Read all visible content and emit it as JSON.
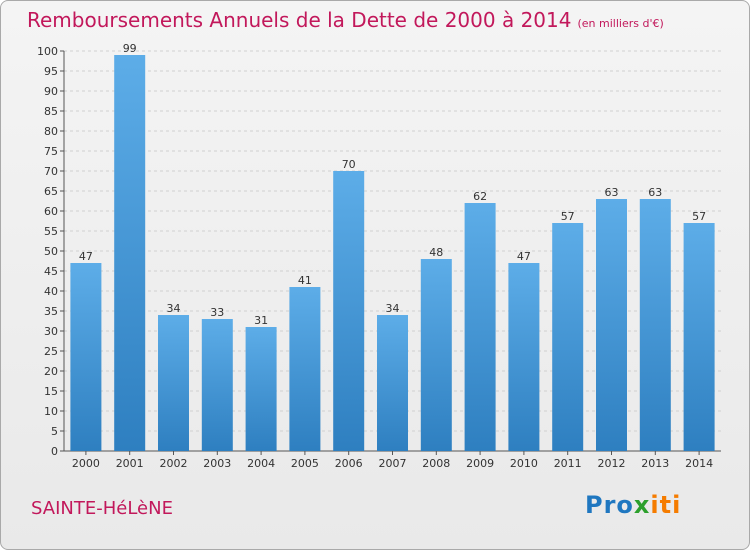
{
  "title": "Remboursements Annuels de la Dette de 2000 à 2014",
  "unit_note": "(en milliers d'€)",
  "commune": "SAINTE-HéLèNE",
  "logo": {
    "part1": "Pro",
    "part2": "x",
    "part3": "iti"
  },
  "colors": {
    "title": "#c2185b",
    "bar_light": "#5dade8",
    "bar_dark": "#2e7fc0",
    "grid": "#d0d0d0"
  },
  "chart_data": {
    "type": "bar",
    "categories": [
      "2000",
      "2001",
      "2002",
      "2003",
      "2004",
      "2005",
      "2006",
      "2007",
      "2008",
      "2009",
      "2010",
      "2011",
      "2012",
      "2013",
      "2014"
    ],
    "values": [
      47,
      99,
      34,
      33,
      31,
      41,
      70,
      34,
      48,
      62,
      47,
      57,
      63,
      63,
      57
    ],
    "title": "Remboursements Annuels de la Dette de 2000 à 2014",
    "ylim": [
      0,
      100
    ],
    "yticks": [
      0,
      5,
      10,
      15,
      20,
      25,
      30,
      35,
      40,
      45,
      50,
      55,
      60,
      65,
      70,
      75,
      80,
      85,
      90,
      95,
      100
    ],
    "grid": true
  }
}
